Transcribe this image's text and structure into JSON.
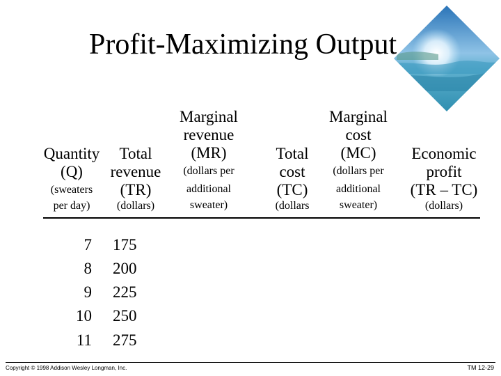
{
  "slide": {
    "title": "Profit-Maximizing Output",
    "copyright": "Copyright © 1998 Addison Wesley Longman, Inc.",
    "slide_number": "TM 12-29"
  },
  "headers": {
    "quantity": {
      "line1": "Quantity",
      "line2": "(Q)",
      "line3": "(sweaters",
      "line4": "per day)"
    },
    "total_revenue": {
      "line1": "Total",
      "line2": "revenue",
      "line3": "(TR)",
      "line4": "(dollars)"
    },
    "marginal_revenue": {
      "line1": "Marginal",
      "line2": "revenue",
      "line3": "(MR)",
      "line4": "(dollars per",
      "line5": "additional",
      "line6": "sweater)"
    },
    "total_cost": {
      "line1": "Total",
      "line2": "cost",
      "line3": "(TC)",
      "line4": "(dollars"
    },
    "marginal_cost": {
      "line1": "Marginal",
      "line2": "cost",
      "line3": "(MC)",
      "line4": "(dollars per",
      "line5": "additional",
      "line6": "sweater)"
    },
    "economic_profit": {
      "line1": "Economic",
      "line2": "profit",
      "line3": "(TR – TC)",
      "line4": "(dollars)"
    }
  },
  "rows": [
    {
      "q": "7",
      "tr": "175"
    },
    {
      "q": "8",
      "tr": "200"
    },
    {
      "q": "9",
      "tr": "225"
    },
    {
      "q": "10",
      "tr": "250"
    },
    {
      "q": "11",
      "tr": "275"
    }
  ]
}
